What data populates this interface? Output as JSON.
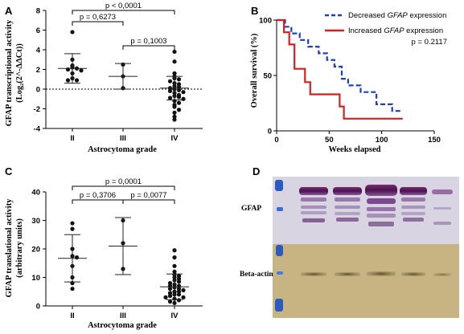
{
  "panels": {
    "A": "A",
    "B": "B",
    "C": "C",
    "D": "D"
  },
  "chart_data": [
    {
      "panel": "A",
      "type": "scatter",
      "ylabel_line1": "GFAP transcriptional activity",
      "ylabel_line2": "(Log₂(2^-ΔΔCt))",
      "xlabel": "Astrocytoma grade",
      "categories": [
        "II",
        "III",
        "IV"
      ],
      "ylim": [
        -4,
        8
      ],
      "yticks": [
        "-4",
        "-2",
        "0",
        "2",
        "4",
        "6",
        "8"
      ],
      "yticks_values": [
        -4,
        -2,
        0,
        2,
        4,
        6,
        8
      ],
      "reference_line": 0,
      "series": [
        {
          "category": "II",
          "mean": 2.1,
          "sd": 1.5,
          "points": [
            5.8,
            3.0,
            2.4,
            2.2,
            2.1,
            2.0,
            1.9,
            1.6,
            1.1,
            0.9,
            0.9
          ]
        },
        {
          "category": "III",
          "mean": 1.3,
          "sd": 1.3,
          "points": [
            2.5,
            1.3,
            0.1
          ]
        },
        {
          "category": "IV",
          "mean": 0.1,
          "sd": 1.2,
          "points": [
            3.8,
            2.8,
            1.6,
            1.3,
            1.1,
            1.0,
            0.8,
            0.6,
            0.5,
            0.3,
            0.2,
            0.1,
            0.0,
            -0.1,
            -0.2,
            -0.3,
            -0.4,
            -0.6,
            -0.7,
            -0.8,
            -0.9,
            -1.0,
            -1.2,
            -1.4,
            -1.6,
            -1.8,
            -2.1,
            -2.4,
            -2.8,
            -3.1
          ]
        }
      ],
      "comparisons": [
        {
          "from": "II",
          "to": "IV",
          "label": "p < 0,0001"
        },
        {
          "from": "II",
          "to": "III",
          "label": "p = 0,6273"
        },
        {
          "from": "III",
          "to": "IV",
          "label": "p = 0,1003"
        }
      ]
    },
    {
      "panel": "B",
      "type": "line",
      "ylabel": "Overall survival (%)",
      "xlabel": "Weeks elapsed",
      "xlim": [
        0,
        150
      ],
      "ylim": [
        0,
        100
      ],
      "xticks": [
        0,
        50,
        100,
        150
      ],
      "yticks": [
        0,
        50,
        100
      ],
      "annotation": "p = 0.2117",
      "series": [
        {
          "legend_prefix": "Decreased ",
          "legend_gene": "GFAP",
          "legend_suffix": " expression",
          "color": "#1f3fbf",
          "dash": true,
          "x": [
            0,
            8,
            8,
            14,
            14,
            22,
            22,
            30,
            30,
            40,
            40,
            48,
            48,
            55,
            55,
            62,
            62,
            68,
            68,
            80,
            80,
            95,
            95,
            110,
            110,
            120
          ],
          "y": [
            100,
            100,
            94,
            94,
            88,
            88,
            82,
            82,
            76,
            76,
            70,
            70,
            64,
            64,
            58,
            58,
            47,
            47,
            41,
            41,
            35,
            35,
            24,
            24,
            18,
            18
          ]
        },
        {
          "legend_prefix": "Increased ",
          "legend_gene": "GFAP",
          "legend_suffix": " expression",
          "color": "#d42020",
          "dash": false,
          "x": [
            0,
            7,
            7,
            12,
            12,
            17,
            17,
            27,
            27,
            32,
            32,
            60,
            60,
            64,
            64,
            70,
            70,
            120
          ],
          "y": [
            100,
            100,
            89,
            89,
            78,
            78,
            56,
            56,
            44,
            44,
            33,
            33,
            22,
            22,
            11,
            11,
            11,
            11
          ]
        }
      ]
    },
    {
      "panel": "C",
      "type": "scatter",
      "ylabel_line1": "GFAP translational activity",
      "ylabel_line2": "(arbitrary units)",
      "xlabel": "Astrocytoma grade",
      "categories": [
        "II",
        "III",
        "IV"
      ],
      "ylim": [
        0,
        40
      ],
      "yticks": [
        "0",
        "10",
        "20",
        "30",
        "40"
      ],
      "yticks_values": [
        0,
        10,
        20,
        30,
        40
      ],
      "series": [
        {
          "category": "II",
          "mean": 16.7,
          "sd": 8.3,
          "points": [
            29.0,
            27.0,
            20.0,
            17.5,
            17.0,
            14.0,
            10.0,
            8.0,
            6.0
          ]
        },
        {
          "category": "III",
          "mean": 21.0,
          "sd": 10.0,
          "points": [
            30.0,
            22.0,
            13.0
          ]
        },
        {
          "category": "IV",
          "mean": 6.7,
          "sd": 4.5,
          "points": [
            19.5,
            17.0,
            14.0,
            12.0,
            11.0,
            10.5,
            10.0,
            9.5,
            9.0,
            8.5,
            8.0,
            7.5,
            7.0,
            7.0,
            6.5,
            6.0,
            6.0,
            5.5,
            5.0,
            5.0,
            4.5,
            4.0,
            4.0,
            3.5,
            3.0,
            3.0,
            2.5,
            2.0,
            1.5,
            1.0
          ]
        }
      ],
      "comparisons": [
        {
          "from": "II",
          "to": "IV",
          "label": "p = 0,0001"
        },
        {
          "from": "II",
          "to": "III",
          "label": "p = 0,3706"
        },
        {
          "from": "III",
          "to": "IV",
          "label": "p = 0,0077"
        }
      ]
    }
  ],
  "blot": {
    "labels": [
      "GFAP",
      "Beta-actin"
    ],
    "colors": {
      "upper_bg": "#d9d6e2",
      "lower_bg": "#c9b98a",
      "band": "#5a1a5a",
      "marker": "#2a5cc0"
    }
  }
}
